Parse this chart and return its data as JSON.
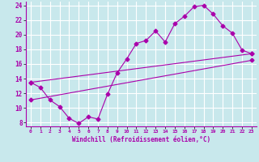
{
  "xlabel": "Windchill (Refroidissement éolien,°C)",
  "background_color": "#c8e8ec",
  "grid_color": "#aad4d8",
  "line_color": "#aa00aa",
  "xlim": [
    -0.5,
    23.5
  ],
  "ylim": [
    7.5,
    24.5
  ],
  "xticks": [
    0,
    1,
    2,
    3,
    4,
    5,
    6,
    7,
    8,
    9,
    10,
    11,
    12,
    13,
    14,
    15,
    16,
    17,
    18,
    19,
    20,
    21,
    22,
    23
  ],
  "yticks": [
    8,
    10,
    12,
    14,
    16,
    18,
    20,
    22,
    24
  ],
  "line1_x": [
    0,
    1,
    2,
    3,
    4,
    5,
    6,
    7,
    8,
    9,
    10,
    11,
    12,
    13,
    14,
    15,
    16,
    17,
    18,
    19,
    20,
    21,
    22,
    23
  ],
  "line1_y": [
    13.5,
    12.8,
    11.1,
    10.2,
    8.6,
    7.9,
    8.8,
    8.5,
    11.9,
    14.8,
    16.7,
    18.8,
    19.2,
    20.5,
    19.0,
    21.5,
    22.5,
    23.8,
    24.0,
    22.8,
    21.2,
    20.2,
    17.9,
    17.4
  ],
  "line2_x": [
    0,
    23
  ],
  "line2_y": [
    13.5,
    17.4
  ],
  "line3_x": [
    0,
    23
  ],
  "line3_y": [
    11.1,
    16.5
  ]
}
